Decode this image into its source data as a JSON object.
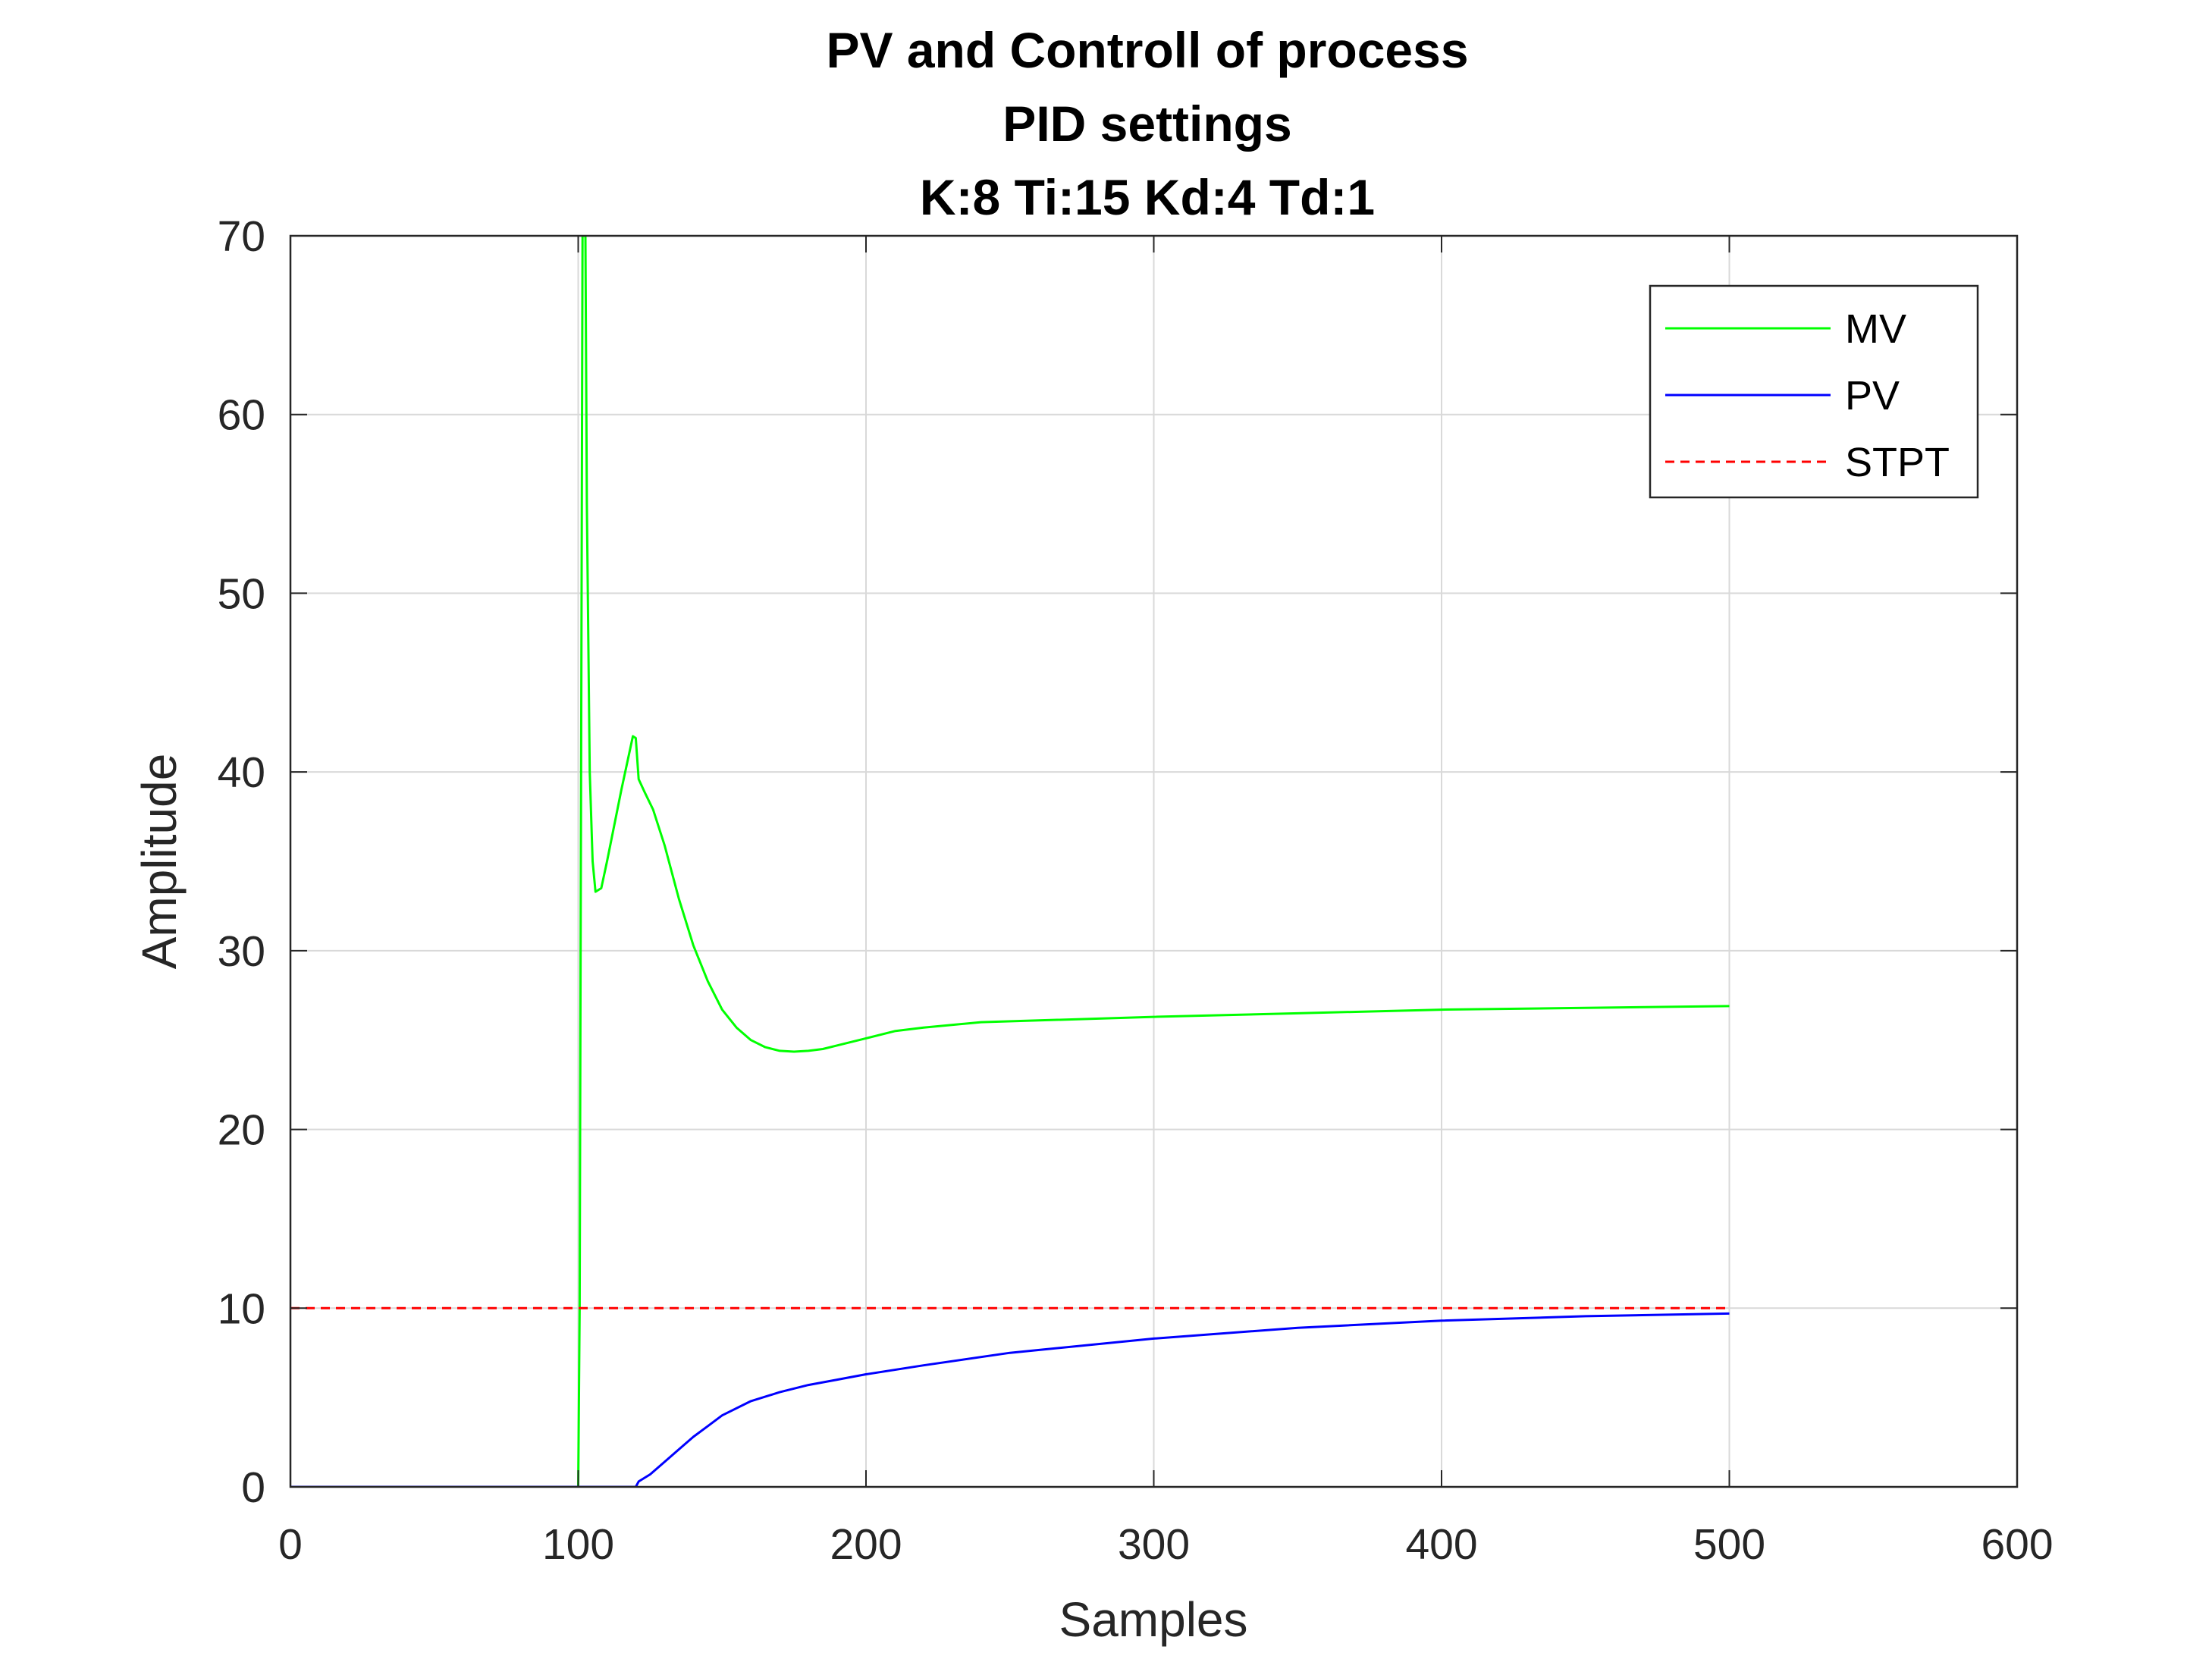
{
  "chart_data": {
    "type": "line",
    "title": [
      "PV and Controll of process",
      "PID settings",
      "K:8  Ti:15  Kd:4  Td:1"
    ],
    "xlabel": "Samples",
    "ylabel": "Amplitude",
    "xlim": [
      0,
      600
    ],
    "ylim": [
      0,
      70
    ],
    "xticks": [
      "0",
      "100",
      "200",
      "300",
      "400",
      "500",
      "600"
    ],
    "yticks": [
      "0",
      "10",
      "20",
      "30",
      "40",
      "50",
      "60",
      "70"
    ],
    "grid": true,
    "legend_position": "top-right",
    "series": [
      {
        "name": "MV",
        "color": "#00ff00",
        "style": "solid",
        "x": [
          0,
          100,
          100.5,
          101,
          101.5,
          102,
          102.5,
          103,
          104,
          105,
          106,
          108,
          110,
          115,
          119,
          120,
          121,
          123,
          126,
          130,
          135,
          140,
          145,
          150,
          155,
          160,
          165,
          170,
          175,
          180,
          185,
          190,
          200,
          210,
          220,
          240,
          260,
          300,
          350,
          400,
          450,
          500
        ],
        "y": [
          0,
          0,
          10,
          40,
          70,
          70,
          70,
          55,
          40,
          35,
          33.3,
          33.5,
          35,
          39,
          42,
          41.9,
          39.6,
          38.9,
          37.9,
          35.9,
          32.9,
          30.3,
          28.3,
          26.7,
          25.7,
          25,
          24.6,
          24.4,
          24.35,
          24.4,
          24.5,
          24.7,
          25.1,
          25.5,
          25.7,
          26,
          26.1,
          26.3,
          26.5,
          26.7,
          26.8,
          26.9
        ]
      },
      {
        "name": "PV",
        "color": "#0000ff",
        "style": "solid",
        "x": [
          0,
          120,
          121,
          125,
          130,
          135,
          140,
          145,
          150,
          160,
          170,
          180,
          190,
          200,
          220,
          250,
          300,
          350,
          400,
          450,
          500
        ],
        "y": [
          0,
          0,
          0.3,
          0.7,
          1.4,
          2.1,
          2.8,
          3.4,
          4,
          4.8,
          5.3,
          5.7,
          6,
          6.3,
          6.8,
          7.5,
          8.3,
          8.9,
          9.3,
          9.55,
          9.7
        ]
      },
      {
        "name": "STPT",
        "color": "#ff0000",
        "style": "dashed",
        "x": [
          0,
          500
        ],
        "y": [
          10,
          10
        ]
      }
    ]
  }
}
